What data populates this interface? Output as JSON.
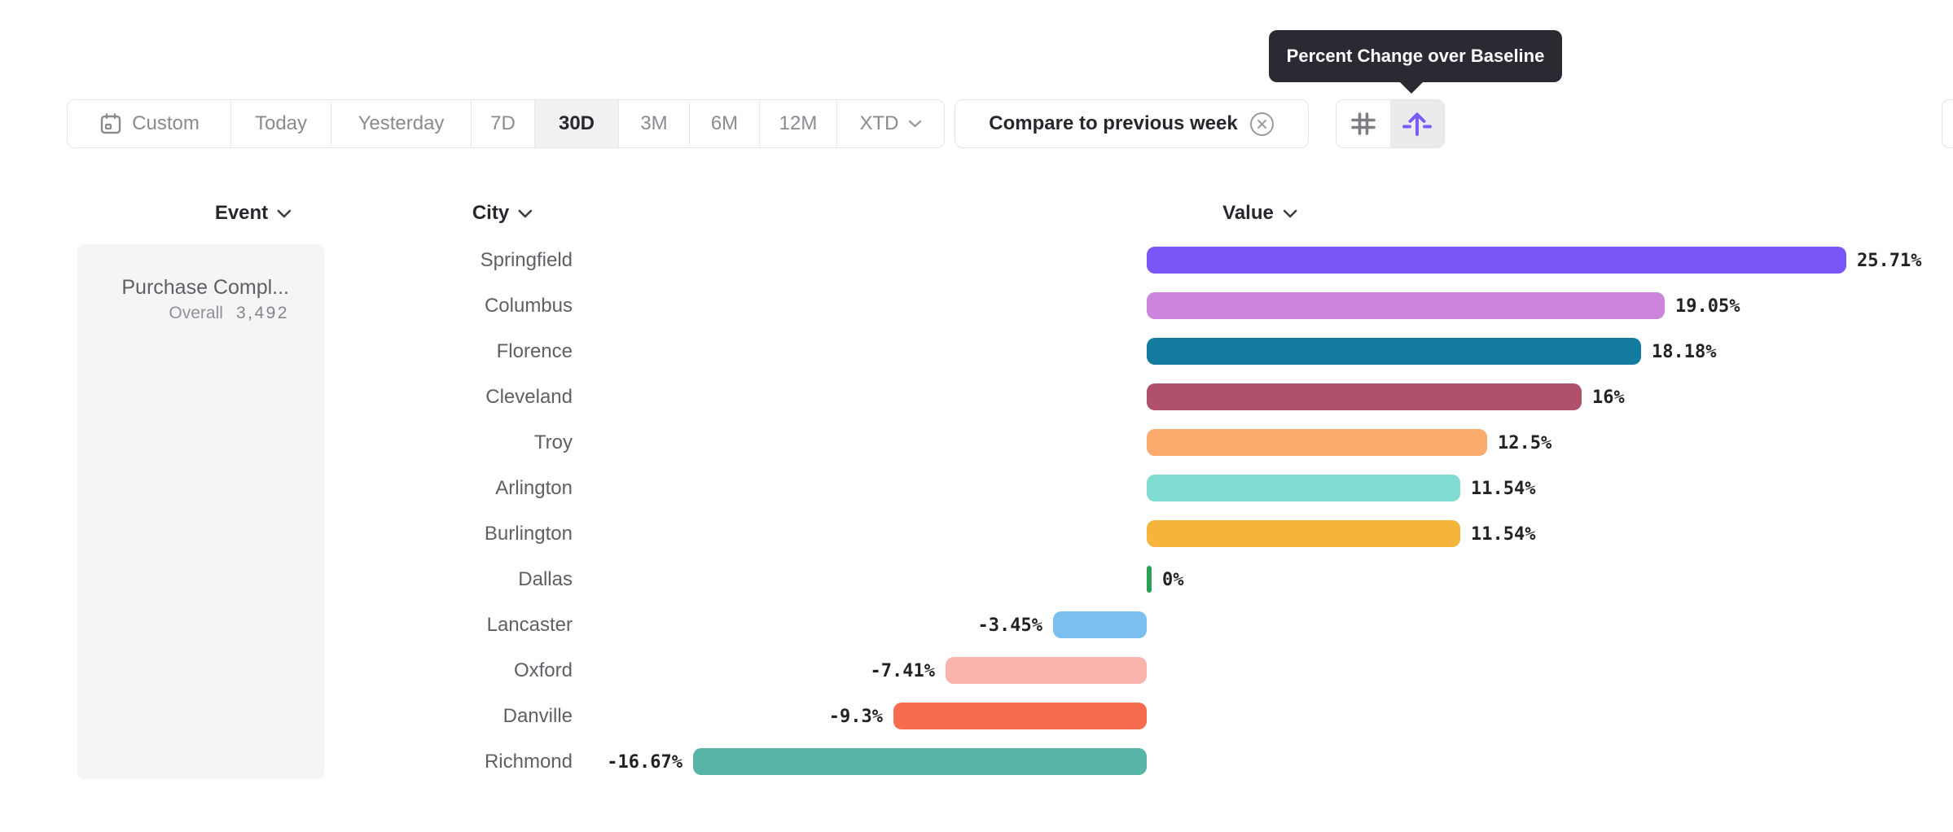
{
  "tooltip": {
    "text": "Percent Change over Baseline"
  },
  "toolbar": {
    "date_ranges": [
      {
        "label": "Custom",
        "icon": "calendar-icon",
        "selected": false
      },
      {
        "label": "Today",
        "selected": false
      },
      {
        "label": "Yesterday",
        "selected": false
      },
      {
        "label": "7D",
        "selected": false
      },
      {
        "label": "30D",
        "selected": true
      },
      {
        "label": "3M",
        "selected": false
      },
      {
        "label": "6M",
        "selected": false
      },
      {
        "label": "12M",
        "selected": false
      },
      {
        "label": "XTD",
        "selected": false,
        "chevron": true
      }
    ],
    "compare_chip": {
      "label": "Compare to previous week"
    },
    "view_toggle": [
      {
        "name": "values-view",
        "icon": "hash-icon",
        "selected": false
      },
      {
        "name": "percent-change-view",
        "icon": "percent-change-baseline-icon",
        "selected": true
      }
    ]
  },
  "columns": {
    "event": "Event",
    "city": "City",
    "value": "Value"
  },
  "event_panel": {
    "event_name": "Purchase Compl...",
    "overall_label": "Overall",
    "overall_value": "3,492"
  },
  "colors": {
    "accent_purple": "#7b5bfa",
    "tooltip_bg": "#2a2a32",
    "border": "#e4e4e7",
    "muted_text": "#8a8a91",
    "dark_text": "#27272d",
    "city_text": "#5f6066",
    "panel_bg": "#f5f5f6"
  },
  "chart_data": {
    "type": "bar",
    "orientation": "horizontal",
    "title": "Percent Change over Baseline",
    "group_by": "City",
    "event": "Purchase Compl...",
    "overall": 3492,
    "categories": [
      "Springfield",
      "Columbus",
      "Florence",
      "Cleveland",
      "Troy",
      "Arlington",
      "Burlington",
      "Dallas",
      "Lancaster",
      "Oxford",
      "Danville",
      "Richmond"
    ],
    "values": [
      25.71,
      19.05,
      18.18,
      16,
      12.5,
      11.54,
      11.54,
      0,
      -3.45,
      -7.41,
      -9.3,
      -16.67
    ],
    "value_labels": [
      "25.71%",
      "19.05%",
      "18.18%",
      "16%",
      "12.5%",
      "11.54%",
      "11.54%",
      "0%",
      "-3.45%",
      "-7.41%",
      "-9.3%",
      "-16.67%"
    ],
    "bar_colors": [
      "#7a55f7",
      "#cd84dc",
      "#137b9e",
      "#b0506b",
      "#fcab6e",
      "#80dcd2",
      "#f5b43c",
      "#2c9e57",
      "#7ac0ee",
      "#fab4ae",
      "#f56c4e",
      "#58b4a6"
    ],
    "xlim": [
      -18,
      27
    ],
    "grid": false,
    "legend": false
  }
}
